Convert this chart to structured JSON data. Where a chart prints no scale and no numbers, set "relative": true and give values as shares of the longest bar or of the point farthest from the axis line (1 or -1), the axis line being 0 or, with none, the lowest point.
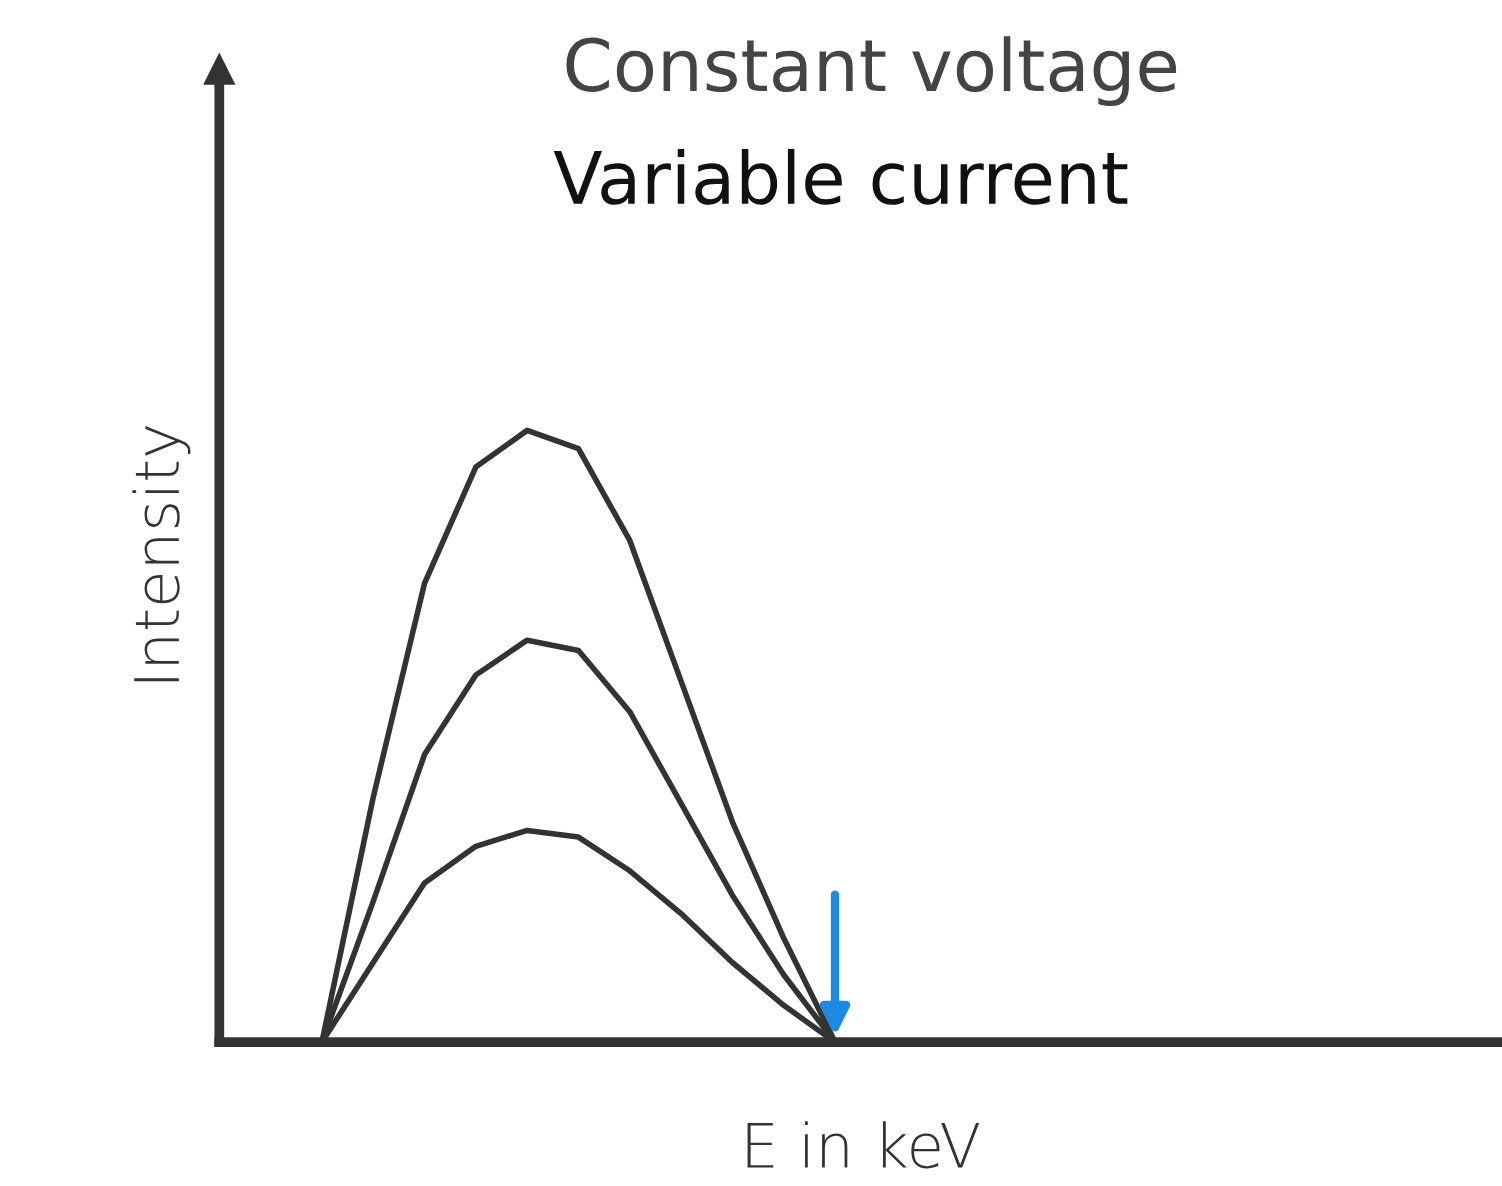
{
  "chart_data": {
    "type": "line",
    "title": "Constant voltage",
    "subtitle": "Variable current",
    "xlabel": "E in keV",
    "ylabel": "Intensity",
    "relative": true,
    "grid": false,
    "legend": false,
    "categories": [
      null,
      null,
      null,
      null,
      null,
      null,
      null,
      null,
      null,
      null,
      null,
      null,
      null,
      null,
      null,
      null,
      null,
      null,
      null,
      null,
      null,
      null,
      null,
      null,
      null,
      null
    ],
    "series": [
      {
        "color": "#333333",
        "values": [
          null,
          null,
          0,
          0.4,
          0.75,
          0.94,
          1,
          0.97,
          0.82,
          0.59,
          0.36,
          0.17,
          0,
          null,
          null,
          null,
          null,
          null,
          null,
          null,
          null,
          null,
          null,
          null,
          null,
          null
        ]
      },
      {
        "color": "#333333",
        "values": [
          null,
          null,
          0,
          0.23,
          0.47,
          0.6,
          0.657,
          0.64,
          0.54,
          0.39,
          0.24,
          0.11,
          0,
          null,
          null,
          null,
          null,
          null,
          null,
          null,
          null,
          null,
          null,
          null,
          null,
          null
        ]
      },
      {
        "color": "#333333",
        "values": [
          null,
          null,
          0,
          0.13,
          0.26,
          0.32,
          0.346,
          0.335,
          0.28,
          0.21,
          0.13,
          0.06,
          0,
          null,
          null,
          null,
          null,
          null,
          null,
          null,
          null,
          null,
          null,
          null,
          null,
          null
        ]
      }
    ]
  }
}
